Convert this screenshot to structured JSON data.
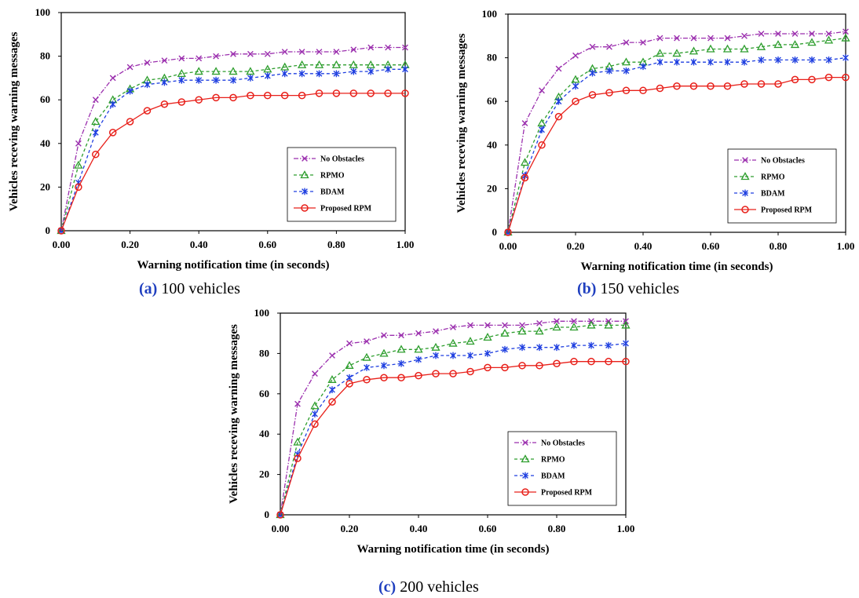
{
  "chart_data": [
    {
      "type": "line",
      "caption_tag": "(a)",
      "caption_text": "100 vehicles",
      "xlabel": "Warning notification time (in seconds)",
      "ylabel": "Vehicles receving warning messages",
      "xlim": [
        0,
        1
      ],
      "ylim": [
        0,
        100
      ],
      "xticks": [
        "0.00",
        "0.20",
        "0.40",
        "0.60",
        "0.80",
        "1.00"
      ],
      "yticks": [
        "0",
        "20",
        "40",
        "60",
        "80",
        "100"
      ],
      "grid": false,
      "legend_position": "bottom-right",
      "x": [
        0,
        0.05,
        0.1,
        0.15,
        0.2,
        0.25,
        0.3,
        0.35,
        0.4,
        0.45,
        0.5,
        0.55,
        0.6,
        0.65,
        0.7,
        0.75,
        0.8,
        0.85,
        0.9,
        0.95,
        1.0
      ],
      "series": [
        {
          "name": "No Obstacles",
          "color": "#9b2fae",
          "marker": "x",
          "dash": "dashdot",
          "values": [
            0,
            40,
            60,
            70,
            75,
            77,
            78,
            79,
            79,
            80,
            81,
            81,
            81,
            82,
            82,
            82,
            82,
            83,
            84,
            84,
            84
          ]
        },
        {
          "name": "RPMO",
          "color": "#2e9e2e",
          "marker": "triangle",
          "dash": "dash",
          "values": [
            0,
            30,
            50,
            60,
            65,
            69,
            70,
            72,
            73,
            73,
            73,
            73,
            74,
            75,
            76,
            76,
            76,
            76,
            76,
            76,
            76
          ]
        },
        {
          "name": "BDAM",
          "color": "#1f3fe0",
          "marker": "star",
          "dash": "dash",
          "values": [
            0,
            22,
            45,
            58,
            64,
            67,
            68,
            69,
            69,
            69,
            69,
            70,
            71,
            72,
            72,
            72,
            72,
            73,
            73,
            74,
            74
          ]
        },
        {
          "name": "Proposed RPM",
          "color": "#e8201a",
          "marker": "circle",
          "dash": "solid",
          "values": [
            0,
            20,
            35,
            45,
            50,
            55,
            58,
            59,
            60,
            61,
            61,
            62,
            62,
            62,
            62,
            63,
            63,
            63,
            63,
            63,
            63
          ]
        }
      ]
    },
    {
      "type": "line",
      "caption_tag": "(b)",
      "caption_text": "150 vehicles",
      "xlabel": "Warning notification time (in seconds)",
      "ylabel": "Vehicles receving warning messages",
      "xlim": [
        0,
        1
      ],
      "ylim": [
        0,
        100
      ],
      "xticks": [
        "0.00",
        "0.20",
        "0.40",
        "0.60",
        "0.80",
        "1.00"
      ],
      "yticks": [
        "0",
        "20",
        "40",
        "60",
        "80",
        "100"
      ],
      "grid": false,
      "legend_position": "bottom-right",
      "x": [
        0,
        0.05,
        0.1,
        0.15,
        0.2,
        0.25,
        0.3,
        0.35,
        0.4,
        0.45,
        0.5,
        0.55,
        0.6,
        0.65,
        0.7,
        0.75,
        0.8,
        0.85,
        0.9,
        0.95,
        1.0
      ],
      "series": [
        {
          "name": "No Obstacles",
          "color": "#9b2fae",
          "marker": "x",
          "dash": "dashdot",
          "values": [
            0,
            50,
            65,
            75,
            81,
            85,
            85,
            87,
            87,
            89,
            89,
            89,
            89,
            89,
            90,
            91,
            91,
            91,
            91,
            91,
            92
          ]
        },
        {
          "name": "RPMO",
          "color": "#2e9e2e",
          "marker": "triangle",
          "dash": "dash",
          "values": [
            0,
            32,
            50,
            62,
            70,
            75,
            76,
            78,
            78,
            82,
            82,
            83,
            84,
            84,
            84,
            85,
            86,
            86,
            87,
            88,
            89
          ]
        },
        {
          "name": "BDAM",
          "color": "#1f3fe0",
          "marker": "star",
          "dash": "dash",
          "values": [
            0,
            26,
            47,
            60,
            67,
            73,
            74,
            74,
            76,
            78,
            78,
            78,
            78,
            78,
            78,
            79,
            79,
            79,
            79,
            79,
            80
          ]
        },
        {
          "name": "Proposed RPM",
          "color": "#e8201a",
          "marker": "circle",
          "dash": "solid",
          "values": [
            0,
            25,
            40,
            53,
            60,
            63,
            64,
            65,
            65,
            66,
            67,
            67,
            67,
            67,
            68,
            68,
            68,
            70,
            70,
            71,
            71
          ]
        }
      ]
    },
    {
      "type": "line",
      "caption_tag": "(c)",
      "caption_text": "200 vehicles",
      "xlabel": "Warning notification time (in seconds)",
      "ylabel": "Vehicles receving warning messages",
      "xlim": [
        0,
        1
      ],
      "ylim": [
        0,
        100
      ],
      "xticks": [
        "0.00",
        "0.20",
        "0.40",
        "0.60",
        "0.80",
        "1.00"
      ],
      "yticks": [
        "0",
        "20",
        "40",
        "60",
        "80",
        "100"
      ],
      "grid": false,
      "legend_position": "bottom-right",
      "x": [
        0,
        0.05,
        0.1,
        0.15,
        0.2,
        0.25,
        0.3,
        0.35,
        0.4,
        0.45,
        0.5,
        0.55,
        0.6,
        0.65,
        0.7,
        0.75,
        0.8,
        0.85,
        0.9,
        0.95,
        1.0
      ],
      "series": [
        {
          "name": "No Obstacles",
          "color": "#9b2fae",
          "marker": "x",
          "dash": "dashdot",
          "values": [
            0,
            55,
            70,
            79,
            85,
            86,
            89,
            89,
            90,
            91,
            93,
            94,
            94,
            94,
            94,
            95,
            96,
            96,
            96,
            96,
            96
          ]
        },
        {
          "name": "RPMO",
          "color": "#2e9e2e",
          "marker": "triangle",
          "dash": "dash",
          "values": [
            0,
            36,
            54,
            67,
            74,
            78,
            80,
            82,
            82,
            83,
            85,
            86,
            88,
            90,
            91,
            91,
            93,
            93,
            94,
            94,
            94
          ]
        },
        {
          "name": "BDAM",
          "color": "#1f3fe0",
          "marker": "star",
          "dash": "dash",
          "values": [
            0,
            30,
            50,
            62,
            68,
            73,
            74,
            75,
            77,
            79,
            79,
            79,
            80,
            82,
            83,
            83,
            83,
            84,
            84,
            84,
            85
          ]
        },
        {
          "name": "Proposed RPM",
          "color": "#e8201a",
          "marker": "circle",
          "dash": "solid",
          "values": [
            0,
            28,
            45,
            56,
            65,
            67,
            68,
            68,
            69,
            70,
            70,
            71,
            73,
            73,
            74,
            74,
            75,
            76,
            76,
            76,
            76
          ]
        }
      ]
    }
  ]
}
